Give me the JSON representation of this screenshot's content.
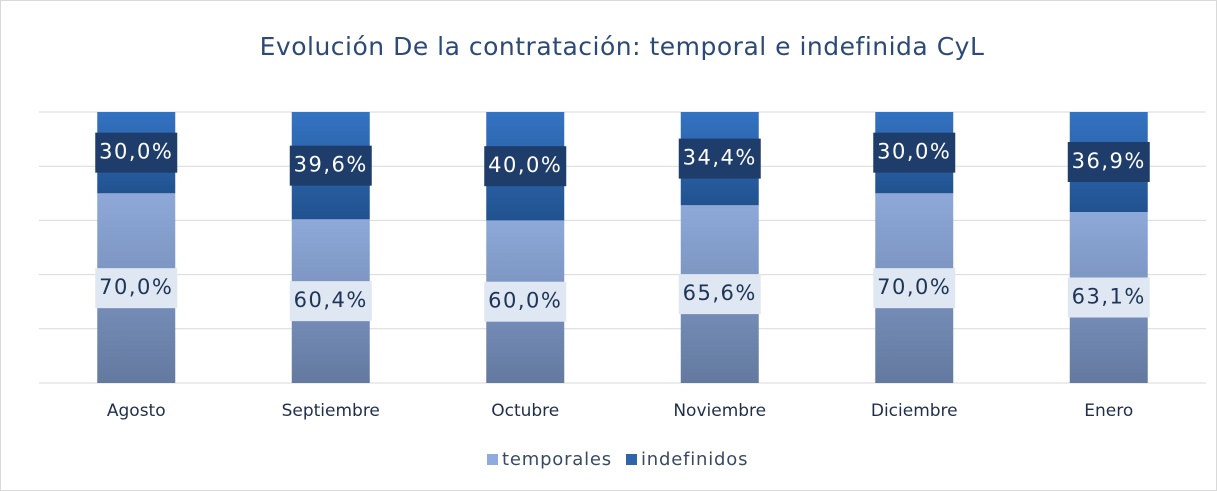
{
  "chart_data": {
    "type": "stacked_bar",
    "title": "Evolución De la contratación: temporal e indefinida CyL",
    "categories": [
      "Agosto",
      "Septiembre",
      "Octubre",
      "Noviembre",
      "Diciembre",
      "Enero"
    ],
    "series": [
      {
        "name": "temporales",
        "color": "#8faadc",
        "values": [
          70.0,
          60.4,
          60.0,
          65.6,
          70.0,
          63.1
        ],
        "value_labels": [
          "70,0%",
          "60,4%",
          "60,0%",
          "65,6%",
          "70,0%",
          "63,1%"
        ]
      },
      {
        "name": "indefinidos",
        "color": "#2f64aa",
        "values": [
          30.0,
          39.6,
          40.0,
          34.4,
          30.0,
          36.9
        ],
        "value_labels": [
          "30,0%",
          "39,6%",
          "40,0%",
          "34,4%",
          "30,0%",
          "36,9%"
        ]
      }
    ],
    "ylim": [
      0,
      100
    ],
    "yticks": [
      0,
      20,
      40,
      60,
      80,
      100
    ],
    "grid": true,
    "legend": "bottom"
  }
}
